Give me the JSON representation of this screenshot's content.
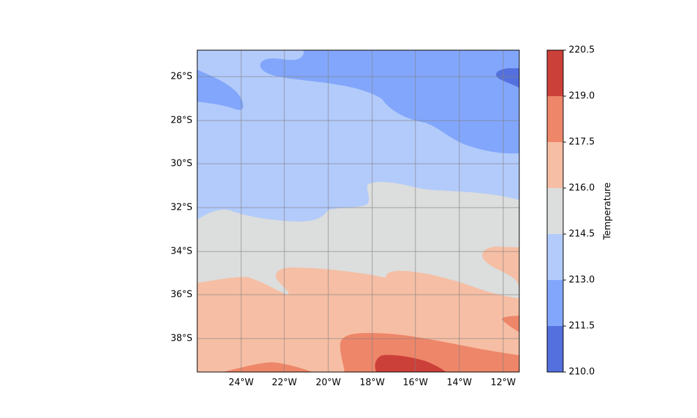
{
  "map": {
    "lat_ticks": [
      "26°S",
      "28°S",
      "30°S",
      "32°S",
      "34°S",
      "36°S",
      "38°S"
    ],
    "lon_ticks": [
      "24°W",
      "22°W",
      "20°W",
      "18°W",
      "16°W",
      "14°W",
      "12°W"
    ],
    "extent": {
      "lon": [
        -26.0,
        -11.2
      ],
      "lat": [
        -39.5,
        -24.8
      ]
    },
    "gridlines": true
  },
  "colorbar": {
    "label": "Temperature",
    "ticks": [
      "210.0",
      "211.5",
      "213.0",
      "214.5",
      "216.0",
      "217.5",
      "219.0",
      "220.5"
    ],
    "levels": [
      {
        "range": "210.0-211.5",
        "color": "#5470de"
      },
      {
        "range": "211.5-213.0",
        "color": "#82a6fb"
      },
      {
        "range": "213.0-214.5",
        "color": "#b2cbfb"
      },
      {
        "range": "214.5-216.0",
        "color": "#dcdddd"
      },
      {
        "range": "216.0-217.5",
        "color": "#f6bea4"
      },
      {
        "range": "217.5-219.0",
        "color": "#ee8669"
      },
      {
        "range": "219.0-220.5",
        "color": "#cc403a"
      }
    ]
  }
}
